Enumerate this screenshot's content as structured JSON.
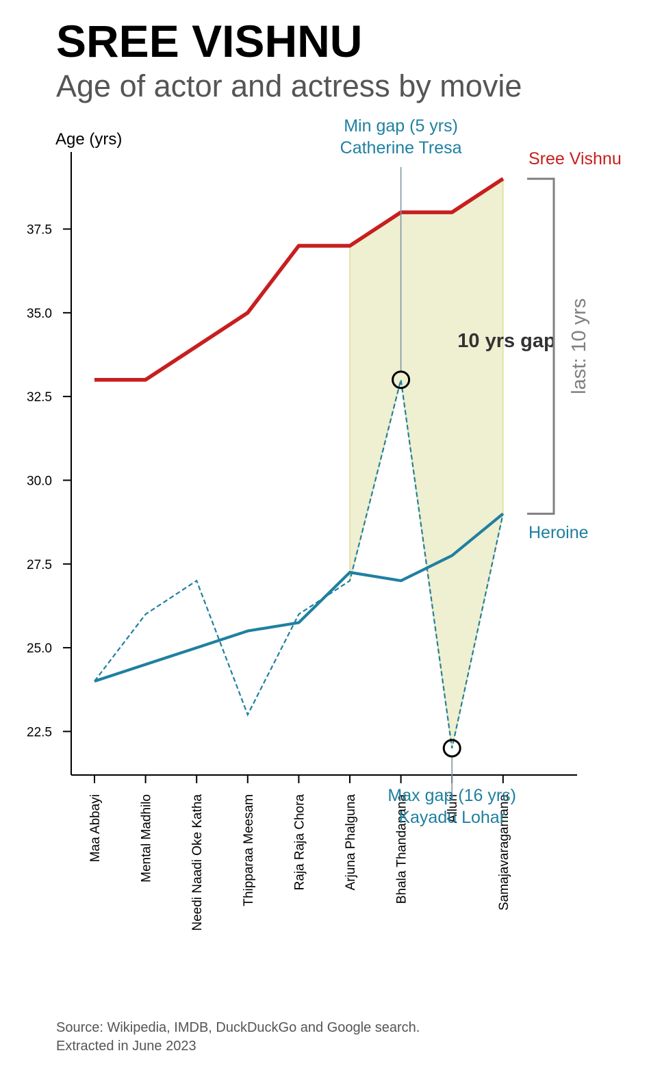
{
  "header": {
    "title": "SREE VISHNU",
    "subtitle": "Age of actor and actress by movie"
  },
  "footer": {
    "source_line1": "Source: Wikipedia, IMDB, DuckDuckGo and Google search.",
    "source_line2": "Extracted in June 2023"
  },
  "chart_data": {
    "type": "line",
    "title": "",
    "ylabel": "Age (yrs)",
    "xlabel": "",
    "ylim": [
      21.2,
      39.8
    ],
    "yticks": [
      22.5,
      25.0,
      27.5,
      30.0,
      32.5,
      35.0,
      37.5
    ],
    "ytick_labels": [
      "22.5",
      "25.0",
      "27.5",
      "30.0",
      "32.5",
      "35.0",
      "37.5"
    ],
    "categories": [
      "Maa Abbayi",
      "Mental Madhilo",
      "Needi Naadi Oke Katha",
      "Thipparaa Meesam",
      "Raja Raja Chora",
      "Arjuna Phalguna",
      "Bhala Thandanana",
      "Alluri",
      "Samajavaragamana"
    ],
    "series": [
      {
        "name": "Sree Vishnu",
        "role": "actor",
        "style": "solid",
        "color": "#c81e1e",
        "values": [
          33,
          33,
          34,
          35,
          37,
          37,
          38,
          38,
          39
        ]
      },
      {
        "name": "Heroine",
        "role": "heroine-trend",
        "style": "solid",
        "color": "#1f80a0",
        "values": [
          24,
          24.5,
          25,
          25.5,
          25.75,
          27.25,
          27,
          27.75,
          29
        ]
      },
      {
        "name": "",
        "role": "heroine-actual",
        "style": "dashed",
        "color": "#1f80a0",
        "values": [
          24,
          26,
          27,
          23,
          26,
          27,
          33,
          22,
          29
        ]
      }
    ],
    "shaded_range": {
      "from_index": 5,
      "to_index": 8,
      "color": "#e7e7b8"
    },
    "annotations": {
      "min_gap": {
        "index": 6,
        "value": 33,
        "line1": "Min gap (5 yrs)",
        "line2": "Catherine Tresa"
      },
      "max_gap": {
        "index": 7,
        "value": 22,
        "line1": "Max gap (16 yrs)",
        "line2": "Kayadu Lohar"
      },
      "gap_label": "10 yrs gap",
      "last_label": "last: 10 yrs",
      "last_from": 29,
      "last_to": 39
    },
    "legend": {
      "placement": "right",
      "actor_label": "Sree Vishnu",
      "heroine_label": "Heroine"
    },
    "grid": false
  }
}
